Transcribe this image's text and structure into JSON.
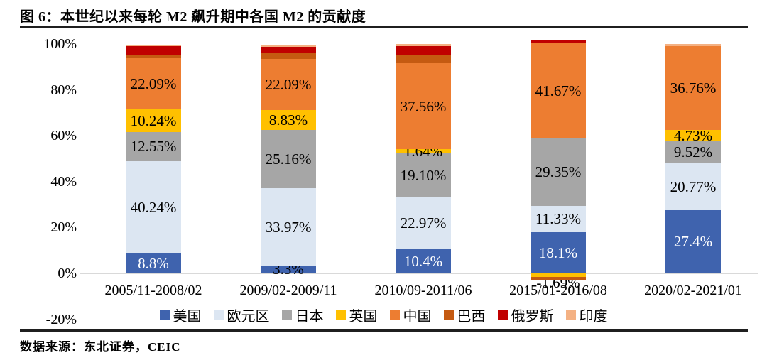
{
  "figure": {
    "title": "图 6：本世纪以来每轮 M2 飙升期中各国 M2 的贡献度",
    "source_note": "数据来源：东北证券，CEIC"
  },
  "chart_data": {
    "type": "bar",
    "stacked": true,
    "title": "本世纪以来每轮 M2 飙升期中各国 M2 的贡献度",
    "xlabel": "",
    "ylabel": "",
    "ylim": [
      -20,
      100
    ],
    "yticks": [
      100,
      80,
      60,
      40,
      20,
      0,
      -20
    ],
    "ytick_labels": [
      "100%",
      "80%",
      "60%",
      "40%",
      "20%",
      "0%",
      "-20%"
    ],
    "grid": false,
    "legend_position": "bottom",
    "axis_line_color": "#d9d9d9",
    "categories": [
      "2005/11-2008/02",
      "2009/02-2009/11",
      "2010/09-2011/06",
      "2015/01-2016/08",
      "2020/02-2021/01"
    ],
    "series": [
      {
        "name": "美国",
        "color": "#3f63ae",
        "values": [
          8.8,
          3.3,
          10.4,
          18.1,
          27.4
        ],
        "labels": [
          "8.8%",
          "3.3%",
          "10.4%",
          "18.1%",
          "27.4%"
        ],
        "label_colors": [
          "#ffffff",
          "#000000",
          "#ffffff",
          "#ffffff",
          "#ffffff"
        ]
      },
      {
        "name": "欧元区",
        "color": "#dce6f2",
        "values": [
          40.24,
          33.97,
          22.97,
          11.33,
          20.77
        ],
        "labels": [
          "40.24%",
          "33.97%",
          "22.97%",
          "11.33%",
          "20.77%"
        ]
      },
      {
        "name": "日本",
        "color": "#a6a6a6",
        "values": [
          12.55,
          25.16,
          19.1,
          29.35,
          9.52
        ],
        "labels": [
          "12.55%",
          "25.16%",
          "19.10%",
          "29.35%",
          "9.52%"
        ]
      },
      {
        "name": "英国",
        "color": "#ffc000",
        "values": [
          10.24,
          8.83,
          1.64,
          -1.69,
          4.73
        ],
        "labels": [
          "10.24%",
          "8.83%",
          "1.64%",
          "-1.69%",
          "4.73%"
        ]
      },
      {
        "name": "中国",
        "color": "#ed7d31",
        "values": [
          22.09,
          22.09,
          37.56,
          41.67,
          36.76
        ],
        "labels": [
          "22.09%",
          "22.09%",
          "37.56%",
          "41.67%",
          "36.76%"
        ]
      },
      {
        "name": "巴西",
        "color": "#c55a11",
        "values": [
          1.5,
          2.6,
          3.4,
          -1.1,
          0
        ],
        "labels": null
      },
      {
        "name": "俄罗斯",
        "color": "#c00000",
        "values": [
          3.5,
          2.9,
          3.9,
          1.0,
          0
        ],
        "labels": null
      },
      {
        "name": "印度",
        "color": "#f4b183",
        "values": [
          0.9,
          0.8,
          1.0,
          0.3,
          0.8
        ],
        "labels": null
      }
    ]
  }
}
